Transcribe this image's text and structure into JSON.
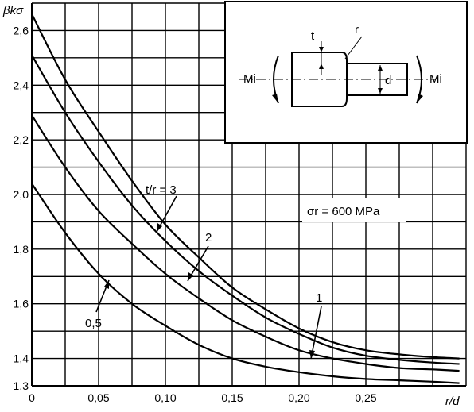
{
  "chart_data": {
    "type": "line",
    "ylabel": "βkσ",
    "xlabel": "r/d",
    "xlim": [
      0,
      0.325
    ],
    "ylim": [
      1.3,
      2.7
    ],
    "x_ticks": [
      {
        "value": 0,
        "label": "0"
      },
      {
        "value": 0.05,
        "label": "0,05"
      },
      {
        "value": 0.1,
        "label": "0,10"
      },
      {
        "value": 0.15,
        "label": "0,15"
      },
      {
        "value": 0.2,
        "label": "0,20"
      },
      {
        "value": 0.25,
        "label": "0,25"
      }
    ],
    "y_ticks": [
      {
        "value": 1.3,
        "label": "1,3"
      },
      {
        "value": 1.4,
        "label": "1,4"
      },
      {
        "value": 1.6,
        "label": "1,6"
      },
      {
        "value": 1.8,
        "label": "1,8"
      },
      {
        "value": 2.0,
        "label": "2,0"
      },
      {
        "value": 2.2,
        "label": "2,2"
      },
      {
        "value": 2.4,
        "label": "2,4"
      },
      {
        "value": 2.6,
        "label": "2,6"
      }
    ],
    "grid": true,
    "annotation": "σr = 600 MPa",
    "series": [
      {
        "name": "t/r = 3",
        "x": [
          0,
          0.025,
          0.05,
          0.075,
          0.1,
          0.125,
          0.15,
          0.175,
          0.2,
          0.225,
          0.25,
          0.275,
          0.3,
          0.32
        ],
        "y": [
          2.66,
          2.42,
          2.23,
          2.05,
          1.89,
          1.77,
          1.66,
          1.58,
          1.51,
          1.46,
          1.43,
          1.415,
          1.405,
          1.4
        ]
      },
      {
        "name": "2",
        "x": [
          0,
          0.025,
          0.05,
          0.075,
          0.1,
          0.125,
          0.15,
          0.175,
          0.2,
          0.225,
          0.25,
          0.275,
          0.3,
          0.32
        ],
        "y": [
          2.51,
          2.3,
          2.12,
          1.96,
          1.83,
          1.72,
          1.63,
          1.55,
          1.49,
          1.44,
          1.41,
          1.395,
          1.385,
          1.38
        ]
      },
      {
        "name": "1",
        "x": [
          0,
          0.025,
          0.05,
          0.075,
          0.1,
          0.125,
          0.15,
          0.175,
          0.2,
          0.225,
          0.25,
          0.275,
          0.3,
          0.32
        ],
        "y": [
          2.29,
          2.1,
          1.94,
          1.82,
          1.71,
          1.62,
          1.54,
          1.48,
          1.43,
          1.4,
          1.38,
          1.365,
          1.36,
          1.355
        ]
      },
      {
        "name": "0,5",
        "x": [
          0,
          0.025,
          0.05,
          0.075,
          0.1,
          0.125,
          0.15,
          0.175,
          0.2,
          0.225,
          0.25,
          0.275,
          0.3,
          0.32
        ],
        "y": [
          2.04,
          1.86,
          1.71,
          1.6,
          1.52,
          1.45,
          1.4,
          1.37,
          1.35,
          1.335,
          1.325,
          1.32,
          1.315,
          1.31
        ]
      }
    ]
  },
  "inset": {
    "labels": {
      "moment_left": "Mi",
      "moment_right": "Mi",
      "step_t": "t",
      "radius_r": "r",
      "diameter_d": "d"
    }
  }
}
